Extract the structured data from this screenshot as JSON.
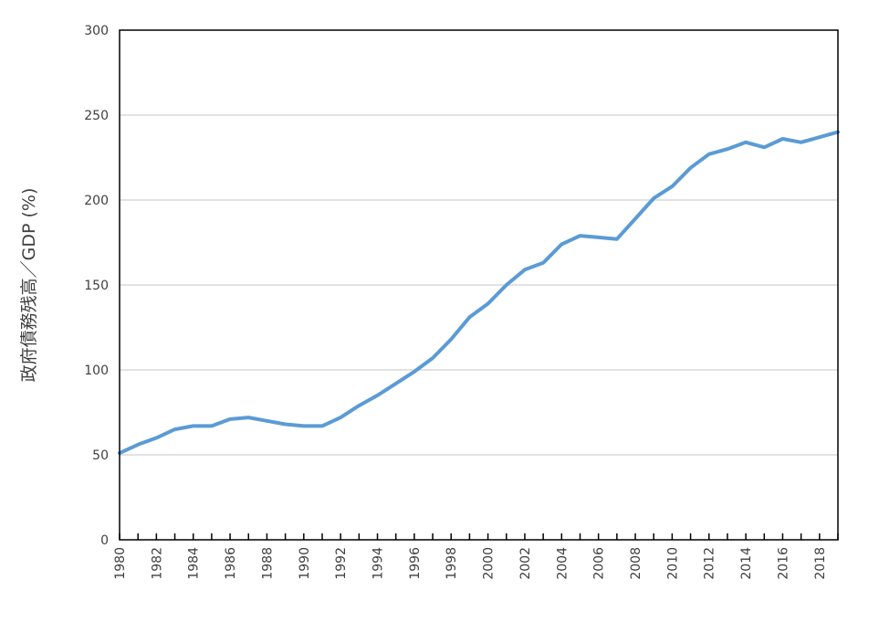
{
  "chart_data": {
    "type": "line",
    "title": "",
    "xlabel": "",
    "ylabel": "政府債務残高／GDP (%)",
    "ylim": [
      0,
      300
    ],
    "yticks": [
      0,
      50,
      100,
      150,
      200,
      250,
      300
    ],
    "xlim": [
      1980,
      2019
    ],
    "xticks": [
      "1980",
      "1982",
      "1984",
      "1986",
      "1988",
      "1990",
      "1992",
      "1994",
      "1996",
      "1998",
      "2000",
      "2002",
      "2004",
      "2006",
      "2008",
      "2010",
      "2012",
      "2014",
      "2016",
      "2018"
    ],
    "grid": true,
    "legend": "none",
    "colors": {
      "line": "#5B9BD5",
      "grid": "#D9D9D9",
      "axis": "#000000",
      "text": "#404040"
    },
    "series": [
      {
        "x": [
          1980,
          1981,
          1982,
          1983,
          1984,
          1985,
          1986,
          1987,
          1988,
          1989,
          1990,
          1991,
          1992,
          1993,
          1994,
          1995,
          1996,
          1997,
          1998,
          1999,
          2000,
          2001,
          2002,
          2003,
          2004,
          2005,
          2006,
          2007,
          2008,
          2009,
          2010,
          2011,
          2012,
          2013,
          2014,
          2015,
          2016,
          2017,
          2018,
          2019
        ],
        "values": [
          51,
          56,
          60,
          65,
          67,
          67,
          71,
          72,
          70,
          68,
          67,
          67,
          72,
          79,
          85,
          92,
          99,
          107,
          118,
          131,
          139,
          150,
          159,
          163,
          174,
          179,
          178,
          177,
          189,
          201,
          208,
          219,
          227,
          230,
          234,
          231,
          236,
          234,
          237,
          240
        ]
      }
    ]
  }
}
